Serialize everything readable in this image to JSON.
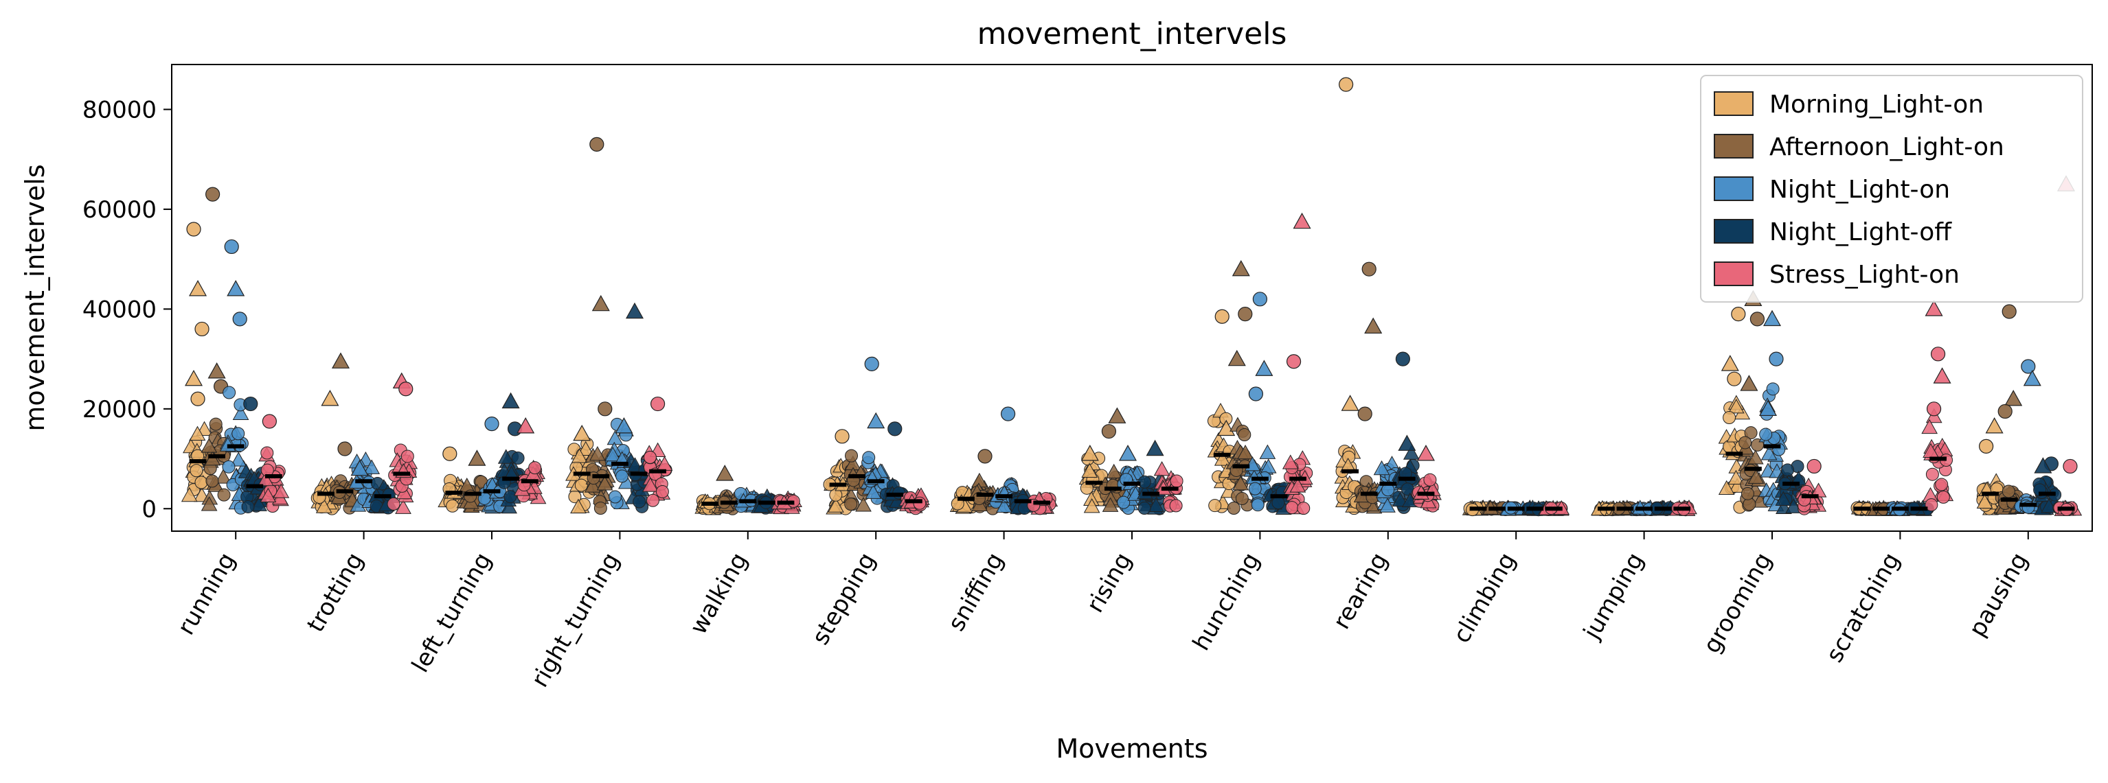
{
  "chart_data": {
    "type": "scatter",
    "title": "movement_intervels",
    "xlabel": "Movements",
    "ylabel": "movement_intervels",
    "ylim": [
      -4500,
      89000
    ],
    "yticks": [
      0,
      20000,
      40000,
      60000,
      80000
    ],
    "legend_position": "top-right",
    "categories": [
      "running",
      "trotting",
      "left_turning",
      "right_turning",
      "walking",
      "stepping",
      "sniffing",
      "rising",
      "hunching",
      "rearing",
      "climbing",
      "jumping",
      "grooming",
      "scratching",
      "pausing"
    ],
    "series": [
      {
        "name": "Morning_Light-on",
        "color": "#e8b06a",
        "medians": [
          9500,
          3000,
          3200,
          7000,
          1000,
          4800,
          2000,
          5200,
          10800,
          7500,
          0,
          0,
          11000,
          0,
          3000
        ],
        "outliers": [
          [
            0,
            56000
          ],
          [
            0,
            44000
          ],
          [
            0,
            36000
          ],
          [
            0,
            26000
          ],
          [
            0,
            22000
          ],
          [
            1,
            22000
          ],
          [
            2,
            11000
          ],
          [
            3,
            15000
          ],
          [
            5,
            14500
          ],
          [
            7,
            11000
          ],
          [
            8,
            38500
          ],
          [
            8,
            16000
          ],
          [
            9,
            85000
          ],
          [
            9,
            21000
          ],
          [
            12,
            39000
          ],
          [
            12,
            29000
          ],
          [
            12,
            26000
          ],
          [
            14,
            16500
          ],
          [
            14,
            12500
          ]
        ]
      },
      {
        "name": "Afternoon_Light-on",
        "color": "#8b6540",
        "medians": [
          10500,
          3500,
          3000,
          6500,
          1200,
          6500,
          2800,
          4000,
          8500,
          3000,
          0,
          0,
          8000,
          0,
          1800
        ],
        "outliers": [
          [
            0,
            63000
          ],
          [
            0,
            27500
          ],
          [
            0,
            24500
          ],
          [
            1,
            29500
          ],
          [
            1,
            12000
          ],
          [
            2,
            10000
          ],
          [
            3,
            73000
          ],
          [
            3,
            41000
          ],
          [
            3,
            20000
          ],
          [
            4,
            7000
          ],
          [
            6,
            10500
          ],
          [
            7,
            18500
          ],
          [
            7,
            15500
          ],
          [
            8,
            48000
          ],
          [
            8,
            39000
          ],
          [
            8,
            30000
          ],
          [
            9,
            48000
          ],
          [
            9,
            36500
          ],
          [
            9,
            19000
          ],
          [
            12,
            42000
          ],
          [
            12,
            38000
          ],
          [
            12,
            25000
          ],
          [
            14,
            39500
          ],
          [
            14,
            22000
          ],
          [
            14,
            19500
          ]
        ]
      },
      {
        "name": "Night_Light-on",
        "color": "#4a8fc8",
        "medians": [
          12500,
          5500,
          3500,
          9000,
          1500,
          5500,
          2500,
          5000,
          6000,
          5000,
          0,
          0,
          12500,
          0,
          800
        ],
        "outliers": [
          [
            0,
            52500
          ],
          [
            0,
            44000
          ],
          [
            0,
            38000
          ],
          [
            1,
            8000
          ],
          [
            2,
            17000
          ],
          [
            3,
            16500
          ],
          [
            5,
            29000
          ],
          [
            5,
            17500
          ],
          [
            6,
            19000
          ],
          [
            7,
            11000
          ],
          [
            8,
            42000
          ],
          [
            8,
            28000
          ],
          [
            8,
            23000
          ],
          [
            12,
            38000
          ],
          [
            12,
            30000
          ],
          [
            12,
            20000
          ],
          [
            14,
            28500
          ],
          [
            14,
            26000
          ]
        ]
      },
      {
        "name": "Night_Light-off",
        "color": "#0d3a5c",
        "medians": [
          4500,
          2500,
          6000,
          7000,
          1200,
          2800,
          1500,
          3000,
          2500,
          6000,
          0,
          0,
          5000,
          0,
          3000
        ],
        "outliers": [
          [
            0,
            21000
          ],
          [
            2,
            21500
          ],
          [
            2,
            16000
          ],
          [
            3,
            39500
          ],
          [
            5,
            16000
          ],
          [
            7,
            12000
          ],
          [
            9,
            30000
          ],
          [
            9,
            13000
          ],
          [
            14,
            9000
          ],
          [
            14,
            8500
          ]
        ]
      },
      {
        "name": "Stress_Light-on",
        "color": "#e8677a",
        "medians": [
          6500,
          7000,
          5500,
          7500,
          1200,
          1500,
          1200,
          4000,
          6000,
          3000,
          0,
          0,
          2500,
          10000,
          0
        ],
        "outliers": [
          [
            0,
            17500
          ],
          [
            1,
            25500
          ],
          [
            1,
            24000
          ],
          [
            2,
            16500
          ],
          [
            3,
            21000
          ],
          [
            8,
            57500
          ],
          [
            8,
            29500
          ],
          [
            9,
            11000
          ],
          [
            12,
            8500
          ],
          [
            13,
            40000
          ],
          [
            13,
            31000
          ],
          [
            13,
            26500
          ],
          [
            13,
            20000
          ],
          [
            14,
            65000
          ],
          [
            14,
            8500
          ]
        ]
      }
    ]
  }
}
